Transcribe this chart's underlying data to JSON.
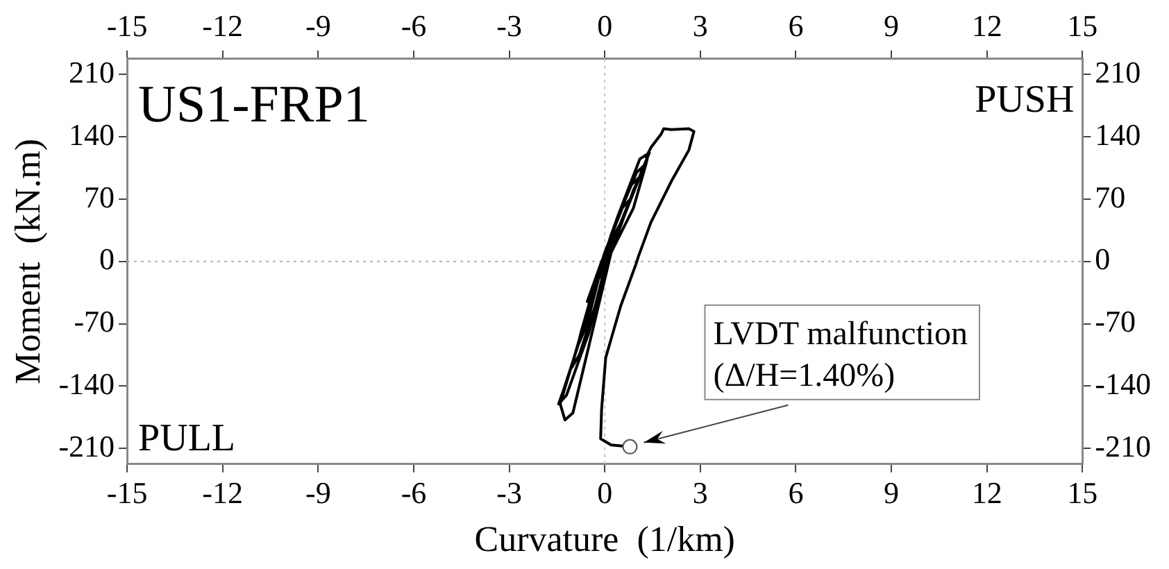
{
  "chart_data": {
    "type": "line",
    "title": "US1-FRP1",
    "xlabel": "Curvature  (1/km)",
    "ylabel": "Moment  (kN.m)",
    "xlim": [
      -15,
      15
    ],
    "xticks": [
      -15,
      -12,
      -9,
      -6,
      -3,
      0,
      3,
      6,
      9,
      12,
      15
    ],
    "x2lim": [
      -15,
      15
    ],
    "x2ticks": [
      -15,
      -12,
      -9,
      -6,
      -3,
      0,
      3,
      6,
      9,
      12,
      15
    ],
    "ylim": [
      -227.5,
      227.5
    ],
    "yticks": [
      -210,
      -140,
      -70,
      0,
      70,
      140,
      210
    ],
    "y2lim": [
      -227.5,
      227.5
    ],
    "y2ticks": [
      -210,
      -140,
      -70,
      0,
      70,
      140,
      210
    ],
    "grid": false,
    "marker": "none",
    "line_style": "solid",
    "legend": false,
    "ref_lines": [
      {
        "axis": "x",
        "value": 0,
        "color": "#c0c0c0",
        "line_style": "dotted"
      },
      {
        "axis": "y",
        "value": 0,
        "color": "#b0b0b0",
        "line_style": "dotted"
      }
    ],
    "annotations": [
      "PUSH",
      "PULL",
      {
        "text": "LVDT malfunction\n(Δ/H=1.40%)",
        "x": 0.79,
        "y": -208
      }
    ],
    "series": [
      {
        "color": "#000000",
        "x": [
          0,
          0.2,
          0.45,
          0.3,
          -0.1,
          -0.4,
          -0.55,
          -0.35,
          0,
          0.35,
          0.8,
          0.55,
          0.0,
          -0.35,
          -0.75,
          -0.85,
          -0.55,
          -0.2,
          0.1,
          0.5,
          0.9,
          1.1,
          0.8,
          0.2,
          -0.4,
          -0.9,
          -1.05,
          -0.8,
          -0.3,
          0.05,
          0.6,
          1.1,
          1.3,
          1.0,
          0.3,
          -0.3,
          -0.8,
          -1.3,
          -1.45,
          -1.2,
          -0.5,
          0.1,
          0.7,
          1.2,
          1.4,
          1.1,
          0.4,
          -0.25,
          -0.9,
          -1.4,
          -1.25,
          -1.0,
          -0.4,
          0.2,
          0.9,
          1.3,
          1.38,
          1.3,
          1.45,
          1.77,
          1.85,
          2.09,
          2.64,
          2.8,
          2.64,
          2.09,
          1.45,
          1.06,
          0.98,
          0.5,
          0.03,
          -0.1,
          -0.13,
          0.2,
          0.79
        ],
        "values": [
          0,
          20,
          40,
          30,
          0,
          -30,
          -45,
          -30,
          0,
          30,
          70,
          60,
          10,
          -30,
          -80,
          -95,
          -70,
          -20,
          0,
          40,
          80,
          95,
          85,
          30,
          -40,
          -100,
          -120,
          -105,
          -50,
          0,
          50,
          95,
          110,
          100,
          40,
          -30,
          -90,
          -145,
          -160,
          -150,
          -80,
          0,
          60,
          105,
          122,
          115,
          50,
          -20,
          -100,
          -160,
          -178,
          -170,
          -80,
          10,
          60,
          110,
          123,
          117,
          128,
          143,
          149,
          148,
          149,
          146,
          125,
          90,
          44,
          6,
          -3,
          -50,
          -108,
          -166,
          -199,
          -206,
          -208
        ]
      }
    ]
  }
}
